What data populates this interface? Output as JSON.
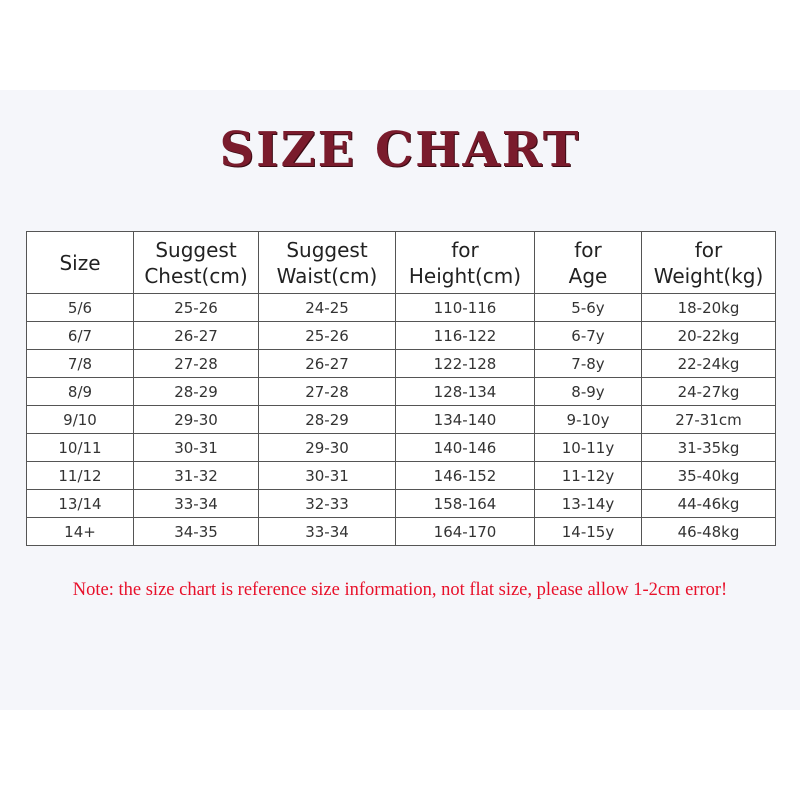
{
  "title": "SIZE CHART",
  "colors": {
    "title": "#7a1b2c",
    "note": "#e8102a",
    "background": "#f5f6fa"
  },
  "table": {
    "headers": [
      [
        "Size",
        ""
      ],
      [
        "Suggest",
        "Chest(cm)"
      ],
      [
        "Suggest",
        "Waist(cm)"
      ],
      [
        "for",
        "Height(cm)"
      ],
      [
        "for",
        "Age"
      ],
      [
        "for",
        "Weight(kg)"
      ]
    ],
    "rows": [
      [
        "5/6",
        "25-26",
        "24-25",
        "110-116",
        "5-6y",
        "18-20kg"
      ],
      [
        "6/7",
        "26-27",
        "25-26",
        "116-122",
        "6-7y",
        "20-22kg"
      ],
      [
        "7/8",
        "27-28",
        "26-27",
        "122-128",
        "7-8y",
        "22-24kg"
      ],
      [
        "8/9",
        "28-29",
        "27-28",
        "128-134",
        "8-9y",
        "24-27kg"
      ],
      [
        "9/10",
        "29-30",
        "28-29",
        "134-140",
        "9-10y",
        "27-31cm"
      ],
      [
        "10/11",
        "30-31",
        "29-30",
        "140-146",
        "10-11y",
        "31-35kg"
      ],
      [
        "11/12",
        "31-32",
        "30-31",
        "146-152",
        "11-12y",
        "35-40kg"
      ],
      [
        "13/14",
        "33-34",
        "32-33",
        "158-164",
        "13-14y",
        "44-46kg"
      ],
      [
        "14+",
        "34-35",
        "33-34",
        "164-170",
        "14-15y",
        "46-48kg"
      ]
    ]
  },
  "note": "Note: the size chart is reference size information, not flat size, please allow 1-2cm error!"
}
